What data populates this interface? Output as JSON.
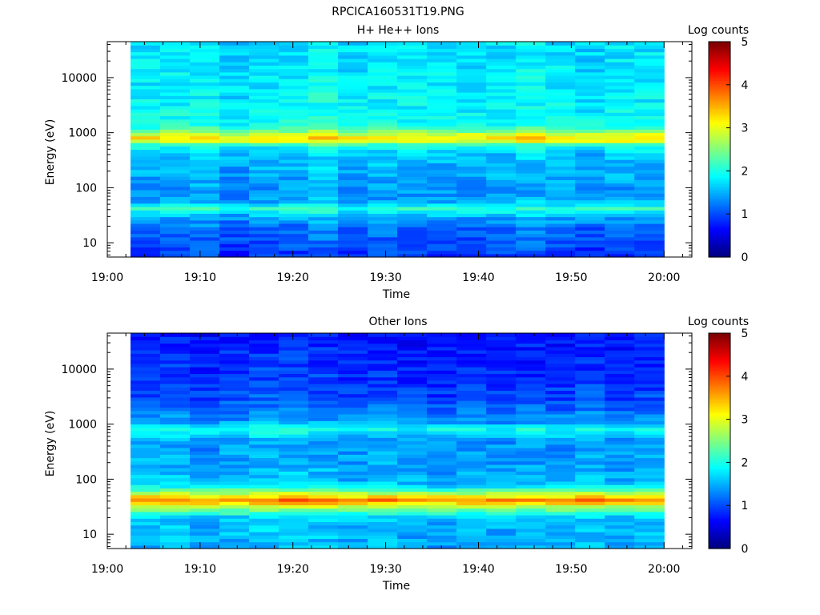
{
  "figure": {
    "title": "RPCICA160531T19.PNG"
  },
  "chart_data": [
    {
      "type": "heatmap",
      "title": "H+ He++ Ions",
      "xlabel": "Time",
      "ylabel": "Energy (eV)",
      "yscale": "log",
      "ylim": [
        5.5,
        45000
      ],
      "xlim": [
        "19:00",
        "20:03"
      ],
      "x_ticks": [
        "19:00",
        "19:10",
        "19:20",
        "19:30",
        "19:40",
        "19:50",
        "20:00"
      ],
      "y_ticks": [
        "10",
        "100",
        "1000",
        "10000"
      ],
      "x_range": [
        "19:02.5",
        "20:00"
      ],
      "time_bins": 18,
      "colorbar": {
        "label": "Log counts",
        "min": 0,
        "max": 5,
        "ticks": [
          "0",
          "1",
          "2",
          "3",
          "4",
          "5"
        ]
      },
      "energy_profile": [
        {
          "energy_ev": 6,
          "log_counts": 0.9
        },
        {
          "energy_ev": 12,
          "log_counts": 1.1
        },
        {
          "energy_ev": 20,
          "log_counts": 1.2
        },
        {
          "energy_ev": 30,
          "log_counts": 1.5
        },
        {
          "energy_ev": 42,
          "log_counts": 2.1
        },
        {
          "energy_ev": 60,
          "log_counts": 1.4
        },
        {
          "energy_ev": 100,
          "log_counts": 1.4
        },
        {
          "energy_ev": 200,
          "log_counts": 1.5
        },
        {
          "energy_ev": 400,
          "log_counts": 1.6
        },
        {
          "energy_ev": 600,
          "log_counts": 2.0
        },
        {
          "energy_ev": 750,
          "log_counts": 3.4
        },
        {
          "energy_ev": 950,
          "log_counts": 2.9
        },
        {
          "energy_ev": 1300,
          "log_counts": 2.0
        },
        {
          "energy_ev": 3000,
          "log_counts": 1.85
        },
        {
          "energy_ev": 10000,
          "log_counts": 1.8
        },
        {
          "energy_ev": 45000,
          "log_counts": 1.75
        }
      ]
    },
    {
      "type": "heatmap",
      "title": "Other Ions",
      "xlabel": "Time",
      "ylabel": "Energy (eV)",
      "yscale": "log",
      "ylim": [
        5.5,
        45000
      ],
      "xlim": [
        "19:00",
        "20:03"
      ],
      "x_ticks": [
        "19:00",
        "19:10",
        "19:20",
        "19:30",
        "19:40",
        "19:50",
        "20:00"
      ],
      "y_ticks": [
        "10",
        "100",
        "1000",
        "10000"
      ],
      "x_range": [
        "19:02.5",
        "20:00"
      ],
      "time_bins": 18,
      "colorbar": {
        "label": "Log counts",
        "min": 0,
        "max": 5,
        "ticks": [
          "0",
          "1",
          "2",
          "3",
          "4",
          "5"
        ]
      },
      "energy_profile": [
        {
          "energy_ev": 6,
          "log_counts": 1.5
        },
        {
          "energy_ev": 20,
          "log_counts": 1.6
        },
        {
          "energy_ev": 30,
          "log_counts": 2.6
        },
        {
          "energy_ev": 42,
          "log_counts": 3.8
        },
        {
          "energy_ev": 55,
          "log_counts": 2.8
        },
        {
          "energy_ev": 80,
          "log_counts": 1.6
        },
        {
          "energy_ev": 200,
          "log_counts": 1.45
        },
        {
          "energy_ev": 500,
          "log_counts": 1.4
        },
        {
          "energy_ev": 800,
          "log_counts": 2.0
        },
        {
          "energy_ev": 1100,
          "log_counts": 1.4
        },
        {
          "energy_ev": 3000,
          "log_counts": 1.0
        },
        {
          "energy_ev": 10000,
          "log_counts": 0.85
        },
        {
          "energy_ev": 45000,
          "log_counts": 0.75
        }
      ]
    }
  ]
}
